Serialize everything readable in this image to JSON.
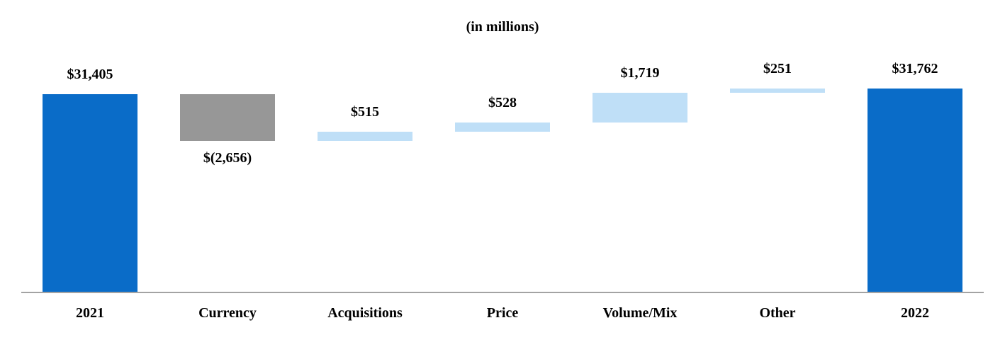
{
  "chart_data": {
    "type": "waterfall",
    "title": "(in millions)",
    "categories": [
      "2021",
      "Currency",
      "Acquisitions",
      "Price",
      "Volume/Mix",
      "Other",
      "2022"
    ],
    "bars": [
      {
        "label": "2021",
        "value": 31405,
        "display": "$31,405",
        "kind": "total",
        "color_key": "primary",
        "label_position": "above"
      },
      {
        "label": "Currency",
        "value": -2656,
        "display": "$(2,656)",
        "kind": "delta",
        "color_key": "negative",
        "label_position": "below"
      },
      {
        "label": "Acquisitions",
        "value": 515,
        "display": "$515",
        "kind": "delta",
        "color_key": "positive",
        "label_position": "above"
      },
      {
        "label": "Price",
        "value": 528,
        "display": "$528",
        "kind": "delta",
        "color_key": "positive",
        "label_position": "above"
      },
      {
        "label": "Volume/Mix",
        "value": 1719,
        "display": "$1,719",
        "kind": "delta",
        "color_key": "positive",
        "label_position": "above"
      },
      {
        "label": "Other",
        "value": 251,
        "display": "$251",
        "kind": "delta",
        "color_key": "positive",
        "label_position": "above"
      },
      {
        "label": "2022",
        "value": 31762,
        "display": "$31,762",
        "kind": "total",
        "color_key": "primary",
        "label_position": "above"
      }
    ],
    "colors": {
      "primary": "#0a6cc8",
      "negative": "#979797",
      "positive": "#bfdff7",
      "axis": "#a3a3a3"
    },
    "ylim": [
      20000,
      34400
    ],
    "grid": false,
    "legend": false
  }
}
